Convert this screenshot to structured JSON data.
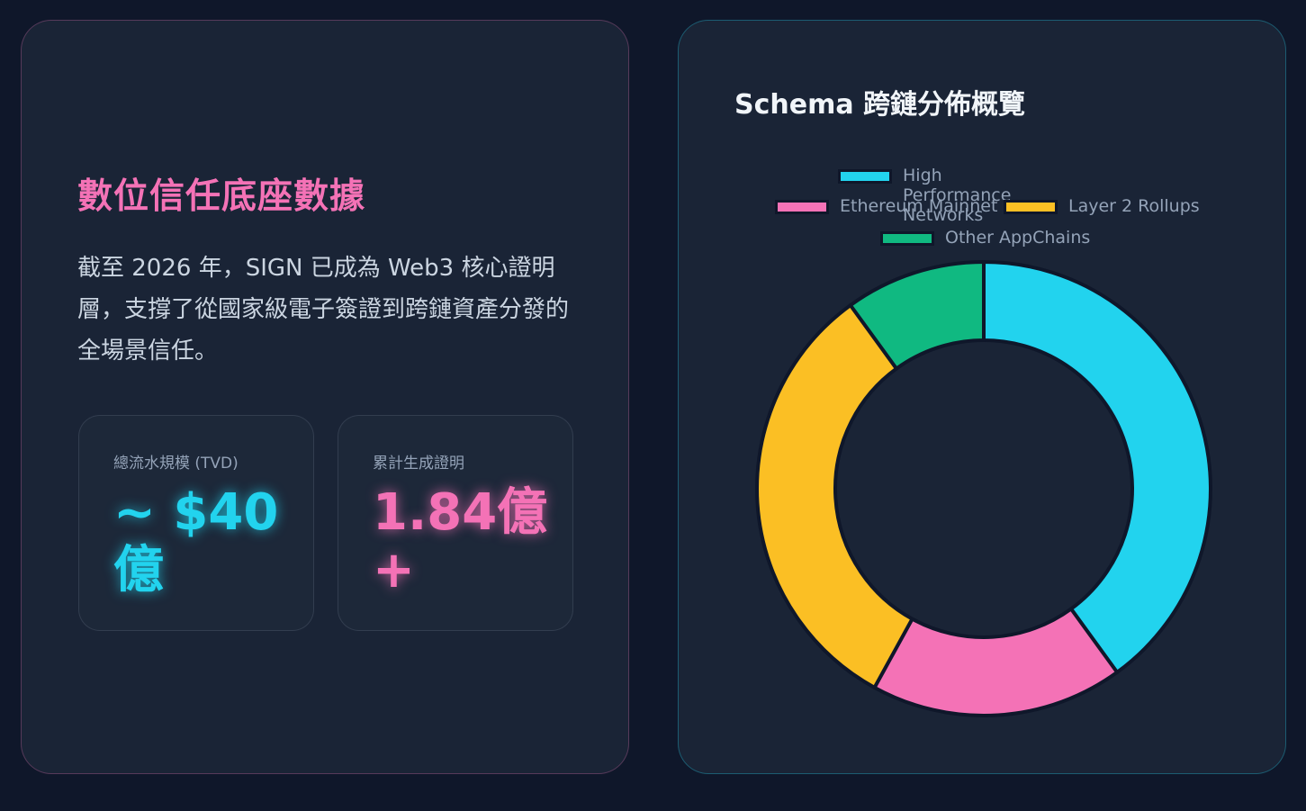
{
  "left_panel": {
    "title": "數位信任底座數據",
    "description": "截至 2026 年，SIGN 已成為 Web3 核心證明層，支撐了從國家級電子簽證到跨鏈資產分發的全場景信任。",
    "stats": [
      {
        "label": "總流水規模 (TVD)",
        "value": "~ $40 億",
        "color": "#22d3ee"
      },
      {
        "label": "累計生成證明",
        "value": "1.84億 +",
        "color": "#f472b6"
      }
    ]
  },
  "chart_data": {
    "type": "pie",
    "variant": "doughnut",
    "title": "Schema 跨鏈分佈概覽",
    "legend_position": "top",
    "categories": [
      "High Performance Networks",
      "Ethereum Mainnet",
      "Layer 2 Rollups",
      "Other AppChains"
    ],
    "values": [
      40,
      18,
      32,
      10
    ],
    "colors": [
      "#22d3ee",
      "#f472b6",
      "#fbbf24",
      "#10b981"
    ]
  }
}
